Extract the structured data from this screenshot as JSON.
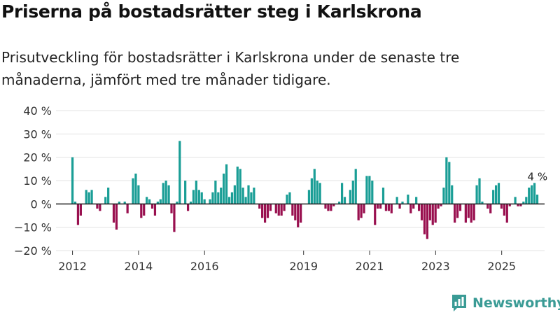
{
  "header": {
    "title": "Priserna på bostadsrätter steg i Karlskrona",
    "subtitle": "Prisutveckling för bostadsrätter i Karlskrona under de senaste tre månaderna, jämfört med tre månader tidigare."
  },
  "brand": {
    "name": "Newsworthy"
  },
  "colors": {
    "positive": "#1a9e96",
    "negative": "#99104f",
    "grid": "#e3e3e3",
    "zero_line": "#222222"
  },
  "chart_data": {
    "type": "bar",
    "title": "Priserna på bostadsrätter steg i Karlskrona",
    "xlabel": "",
    "ylabel": "",
    "ylim": [
      -20,
      40
    ],
    "xlim": [
      2011.5,
      2026.3
    ],
    "yticks": [
      -20,
      -10,
      0,
      10,
      20,
      30,
      40
    ],
    "ytick_labels": [
      "−20 %",
      "−10 %",
      "0 %",
      "10 %",
      "20 %",
      "30 %",
      "40 %"
    ],
    "xticks": [
      2012,
      2014,
      2016,
      2019,
      2021,
      2023,
      2025
    ],
    "xtick_labels": [
      "2012",
      "2014",
      "2016",
      "2019",
      "2021",
      "2023",
      "2025"
    ],
    "annotation": {
      "text": "4 %",
      "x": 2026.0,
      "y": 9
    },
    "start": 2012.0,
    "step": 0.0833,
    "values": [
      20,
      1,
      -9,
      -5,
      0,
      6,
      5,
      6,
      0,
      -2,
      -3,
      0,
      3,
      7,
      0,
      -8,
      -11,
      1,
      0,
      1,
      -4,
      0,
      11,
      13,
      8,
      -6,
      -5,
      3,
      2,
      -2,
      -5,
      1,
      2,
      9,
      10,
      8,
      -4,
      -12,
      1,
      27,
      0,
      10,
      -3,
      1,
      6,
      10,
      6,
      5,
      2,
      0,
      2,
      5,
      10,
      5,
      7,
      13,
      17,
      3,
      5,
      8,
      16,
      15,
      7,
      3,
      8,
      5,
      7,
      0,
      -2,
      -6,
      -8,
      -6,
      -3,
      0,
      -4,
      -5,
      -5,
      -3,
      4,
      5,
      -5,
      -7,
      -10,
      -8,
      0,
      0,
      6,
      11,
      15,
      10,
      9,
      0,
      -2,
      -3,
      -3,
      -1,
      0,
      1,
      9,
      3,
      0,
      6,
      10,
      15,
      -7,
      -6,
      -4,
      12,
      12,
      10,
      -9,
      -2,
      -2,
      7,
      -3,
      -3,
      -4,
      0,
      3,
      -2,
      1,
      0,
      4,
      -4,
      -2,
      3,
      -3,
      -7,
      -13,
      -15,
      -7,
      -9,
      -8,
      -2,
      -1,
      7,
      20,
      18,
      8,
      -8,
      -6,
      -3,
      0,
      -8,
      -6,
      -8,
      -7,
      8,
      11,
      1,
      0,
      -2,
      -4,
      6,
      8,
      9,
      -2,
      -5,
      -8,
      -1,
      0,
      3,
      -1,
      -1,
      1,
      3,
      7,
      8,
      9,
      4
    ]
  }
}
